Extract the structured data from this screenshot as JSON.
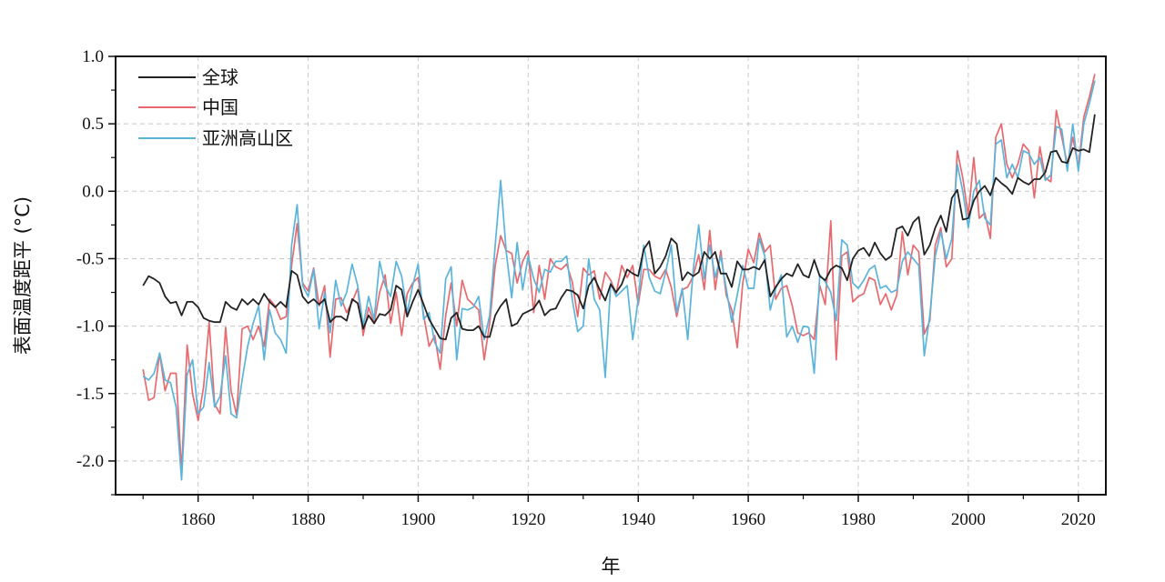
{
  "chart_data": {
    "type": "line",
    "title": "",
    "xlabel": "年",
    "ylabel": "表面温度距平 (°C)",
    "xlim": [
      1845,
      2025
    ],
    "ylim": [
      -2.25,
      1.0
    ],
    "x_ticks": [
      1860,
      1880,
      1900,
      1920,
      1940,
      1960,
      1980,
      2000,
      2020
    ],
    "y_ticks": [
      1.0,
      0.5,
      0.0,
      -0.5,
      -1.0,
      -1.5,
      -2.0
    ],
    "y_tick_labels": [
      "1.0",
      "0.5",
      "0.0",
      "-0.5",
      "-1.0",
      "-1.5",
      "-2.0"
    ],
    "grid": true,
    "legend_position": "top-left",
    "x_start": 1850,
    "x_end": 2023,
    "series": [
      {
        "name": "全球",
        "color": "#222222",
        "values": [
          -0.7,
          -0.63,
          -0.65,
          -0.68,
          -0.78,
          -0.83,
          -0.82,
          -0.92,
          -0.82,
          -0.82,
          -0.86,
          -0.94,
          -0.96,
          -0.97,
          -0.97,
          -0.82,
          -0.86,
          -0.88,
          -0.8,
          -0.84,
          -0.8,
          -0.84,
          -0.76,
          -0.82,
          -0.86,
          -0.82,
          -0.86,
          -0.59,
          -0.62,
          -0.78,
          -0.83,
          -0.8,
          -0.84,
          -0.8,
          -0.97,
          -0.93,
          -0.93,
          -0.96,
          -0.8,
          -0.83,
          -1.02,
          -0.92,
          -0.98,
          -0.91,
          -0.92,
          -0.88,
          -0.7,
          -0.73,
          -0.93,
          -0.82,
          -0.73,
          -0.84,
          -0.95,
          -1.02,
          -1.09,
          -1.1,
          -0.94,
          -0.9,
          -1.02,
          -1.03,
          -1.03,
          -1.0,
          -1.08,
          -1.08,
          -0.92,
          -0.85,
          -0.8,
          -1.0,
          -0.98,
          -0.91,
          -0.89,
          -0.87,
          -0.81,
          -0.92,
          -0.88,
          -0.87,
          -0.79,
          -0.73,
          -0.74,
          -0.77,
          -0.87,
          -0.7,
          -0.64,
          -0.73,
          -0.81,
          -0.69,
          -0.75,
          -0.69,
          -0.58,
          -0.61,
          -0.63,
          -0.43,
          -0.37,
          -0.61,
          -0.56,
          -0.48,
          -0.35,
          -0.39,
          -0.66,
          -0.6,
          -0.63,
          -0.6,
          -0.45,
          -0.5,
          -0.45,
          -0.61,
          -0.61,
          -0.71,
          -0.52,
          -0.58,
          -0.58,
          -0.56,
          -0.58,
          -0.51,
          -0.78,
          -0.71,
          -0.65,
          -0.61,
          -0.63,
          -0.54,
          -0.62,
          -0.64,
          -0.51,
          -0.63,
          -0.66,
          -0.58,
          -0.55,
          -0.57,
          -0.66,
          -0.5,
          -0.44,
          -0.42,
          -0.48,
          -0.38,
          -0.46,
          -0.51,
          -0.48,
          -0.28,
          -0.26,
          -0.33,
          -0.23,
          -0.19,
          -0.47,
          -0.4,
          -0.27,
          -0.18,
          -0.3,
          -0.05,
          0.01,
          -0.21,
          -0.2,
          -0.07,
          0.0,
          0.04,
          -0.03,
          0.1,
          0.06,
          0.03,
          -0.02,
          0.1,
          0.07,
          0.05,
          0.09,
          0.09,
          0.14,
          0.29,
          0.3,
          0.22,
          0.21,
          0.32,
          0.3,
          0.31,
          0.29,
          0.57
        ]
      },
      {
        "name": "中国",
        "color": "#e8696e",
        "values": [
          -1.32,
          -1.55,
          -1.53,
          -1.2,
          -1.48,
          -1.35,
          -1.35,
          -2.08,
          -1.14,
          -1.5,
          -1.7,
          -1.45,
          -0.97,
          -1.58,
          -1.65,
          -1.01,
          -1.48,
          -1.66,
          -1.02,
          -1.0,
          -1.1,
          -1.0,
          -1.15,
          -0.8,
          -0.85,
          -0.95,
          -0.93,
          -0.55,
          -0.24,
          -0.68,
          -0.74,
          -0.57,
          -0.85,
          -0.7,
          -1.23,
          -0.8,
          -0.79,
          -0.9,
          -0.82,
          -0.72,
          -1.07,
          -0.86,
          -0.98,
          -0.75,
          -0.62,
          -0.98,
          -0.75,
          -1.07,
          -0.76,
          -0.68,
          -0.64,
          -0.92,
          -1.15,
          -1.07,
          -1.32,
          -0.92,
          -0.68,
          -1.0,
          -0.66,
          -0.8,
          -0.84,
          -0.88,
          -1.25,
          -0.98,
          -0.55,
          -0.33,
          -0.44,
          -0.46,
          -0.68,
          -0.52,
          -0.44,
          -0.9,
          -0.55,
          -0.8,
          -0.5,
          -0.56,
          -0.58,
          -0.54,
          -0.67,
          -0.93,
          -0.57,
          -0.62,
          -0.59,
          -0.8,
          -0.6,
          -0.66,
          -0.76,
          -0.55,
          -0.64,
          -0.55,
          -0.84,
          -0.58,
          -0.58,
          -0.63,
          -0.65,
          -0.58,
          -0.71,
          -0.93,
          -0.73,
          -0.71,
          -0.63,
          -0.47,
          -0.73,
          -0.29,
          -0.73,
          -0.44,
          -0.77,
          -0.88,
          -1.16,
          -0.68,
          -0.43,
          -0.53,
          -0.31,
          -0.45,
          -0.4,
          -0.8,
          -0.72,
          -0.7,
          -0.85,
          -1.05,
          -1.07,
          -1.05,
          -1.1,
          -0.7,
          -0.84,
          -0.22,
          -1.25,
          -0.48,
          -0.45,
          -0.82,
          -0.78,
          -0.76,
          -0.64,
          -0.66,
          -0.84,
          -0.76,
          -0.88,
          -0.77,
          -0.3,
          -0.62,
          -0.4,
          -0.45,
          -1.06,
          -0.96,
          -0.4,
          -0.27,
          -0.56,
          -0.5,
          0.3,
          0.1,
          -0.18,
          0.25,
          -0.2,
          -0.16,
          -0.35,
          0.4,
          0.5,
          0.2,
          0.1,
          0.2,
          0.35,
          0.3,
          -0.05,
          0.33,
          0.1,
          0.07,
          0.6,
          0.4,
          0.2,
          0.4,
          0.18,
          0.55,
          0.7,
          0.87
        ]
      },
      {
        "name": "亚洲高山区",
        "color": "#5ab4dc",
        "values": [
          -1.37,
          -1.4,
          -1.35,
          -1.2,
          -1.4,
          -1.42,
          -1.6,
          -2.14,
          -1.36,
          -1.25,
          -1.65,
          -1.6,
          -1.27,
          -1.6,
          -1.52,
          -1.22,
          -1.65,
          -1.68,
          -1.4,
          -1.15,
          -0.98,
          -0.85,
          -1.25,
          -0.88,
          -1.05,
          -1.1,
          -1.2,
          -0.4,
          -0.1,
          -0.7,
          -0.78,
          -0.58,
          -1.02,
          -0.75,
          -1.05,
          -0.66,
          -0.85,
          -0.75,
          -0.54,
          -0.7,
          -1.0,
          -0.78,
          -0.95,
          -0.52,
          -0.7,
          -0.78,
          -0.52,
          -0.63,
          -0.9,
          -0.7,
          -0.54,
          -0.95,
          -0.9,
          -1.12,
          -1.2,
          -0.65,
          -0.56,
          -1.25,
          -0.87,
          -0.88,
          -0.86,
          -0.78,
          -1.1,
          -0.92,
          -0.4,
          0.08,
          -0.45,
          -0.79,
          -0.38,
          -0.73,
          -0.48,
          -0.65,
          -0.75,
          -0.58,
          -0.6,
          -0.52,
          -0.52,
          -0.48,
          -0.8,
          -1.04,
          -1.0,
          -0.5,
          -0.8,
          -0.88,
          -1.38,
          -0.68,
          -0.78,
          -0.74,
          -0.7,
          -1.1,
          -0.8,
          -0.4,
          -0.64,
          -0.74,
          -0.76,
          -0.6,
          -0.4,
          -0.9,
          -0.72,
          -1.1,
          -0.58,
          -0.25,
          -0.65,
          -0.4,
          -0.64,
          -0.48,
          -0.72,
          -0.97,
          -0.77,
          -0.55,
          -0.72,
          -0.72,
          -0.35,
          -0.48,
          -0.88,
          -0.72,
          -0.62,
          -1.08,
          -1.0,
          -1.12,
          -1.0,
          -1.01,
          -1.35,
          -0.62,
          -0.67,
          -0.75,
          -0.96,
          -0.36,
          -0.4,
          -0.68,
          -0.72,
          -0.66,
          -0.58,
          -0.55,
          -0.72,
          -0.7,
          -0.75,
          -0.73,
          -0.52,
          -0.45,
          -0.5,
          -0.55,
          -1.22,
          -0.92,
          -0.48,
          -0.3,
          -0.5,
          -0.35,
          0.2,
          0.0,
          -0.27,
          0.0,
          0.08,
          -0.2,
          -0.25,
          0.35,
          0.38,
          0.1,
          0.2,
          0.1,
          0.3,
          0.28,
          0.2,
          0.25,
          0.08,
          0.12,
          0.48,
          0.46,
          0.15,
          0.5,
          0.15,
          0.5,
          0.65,
          0.82
        ]
      }
    ]
  }
}
